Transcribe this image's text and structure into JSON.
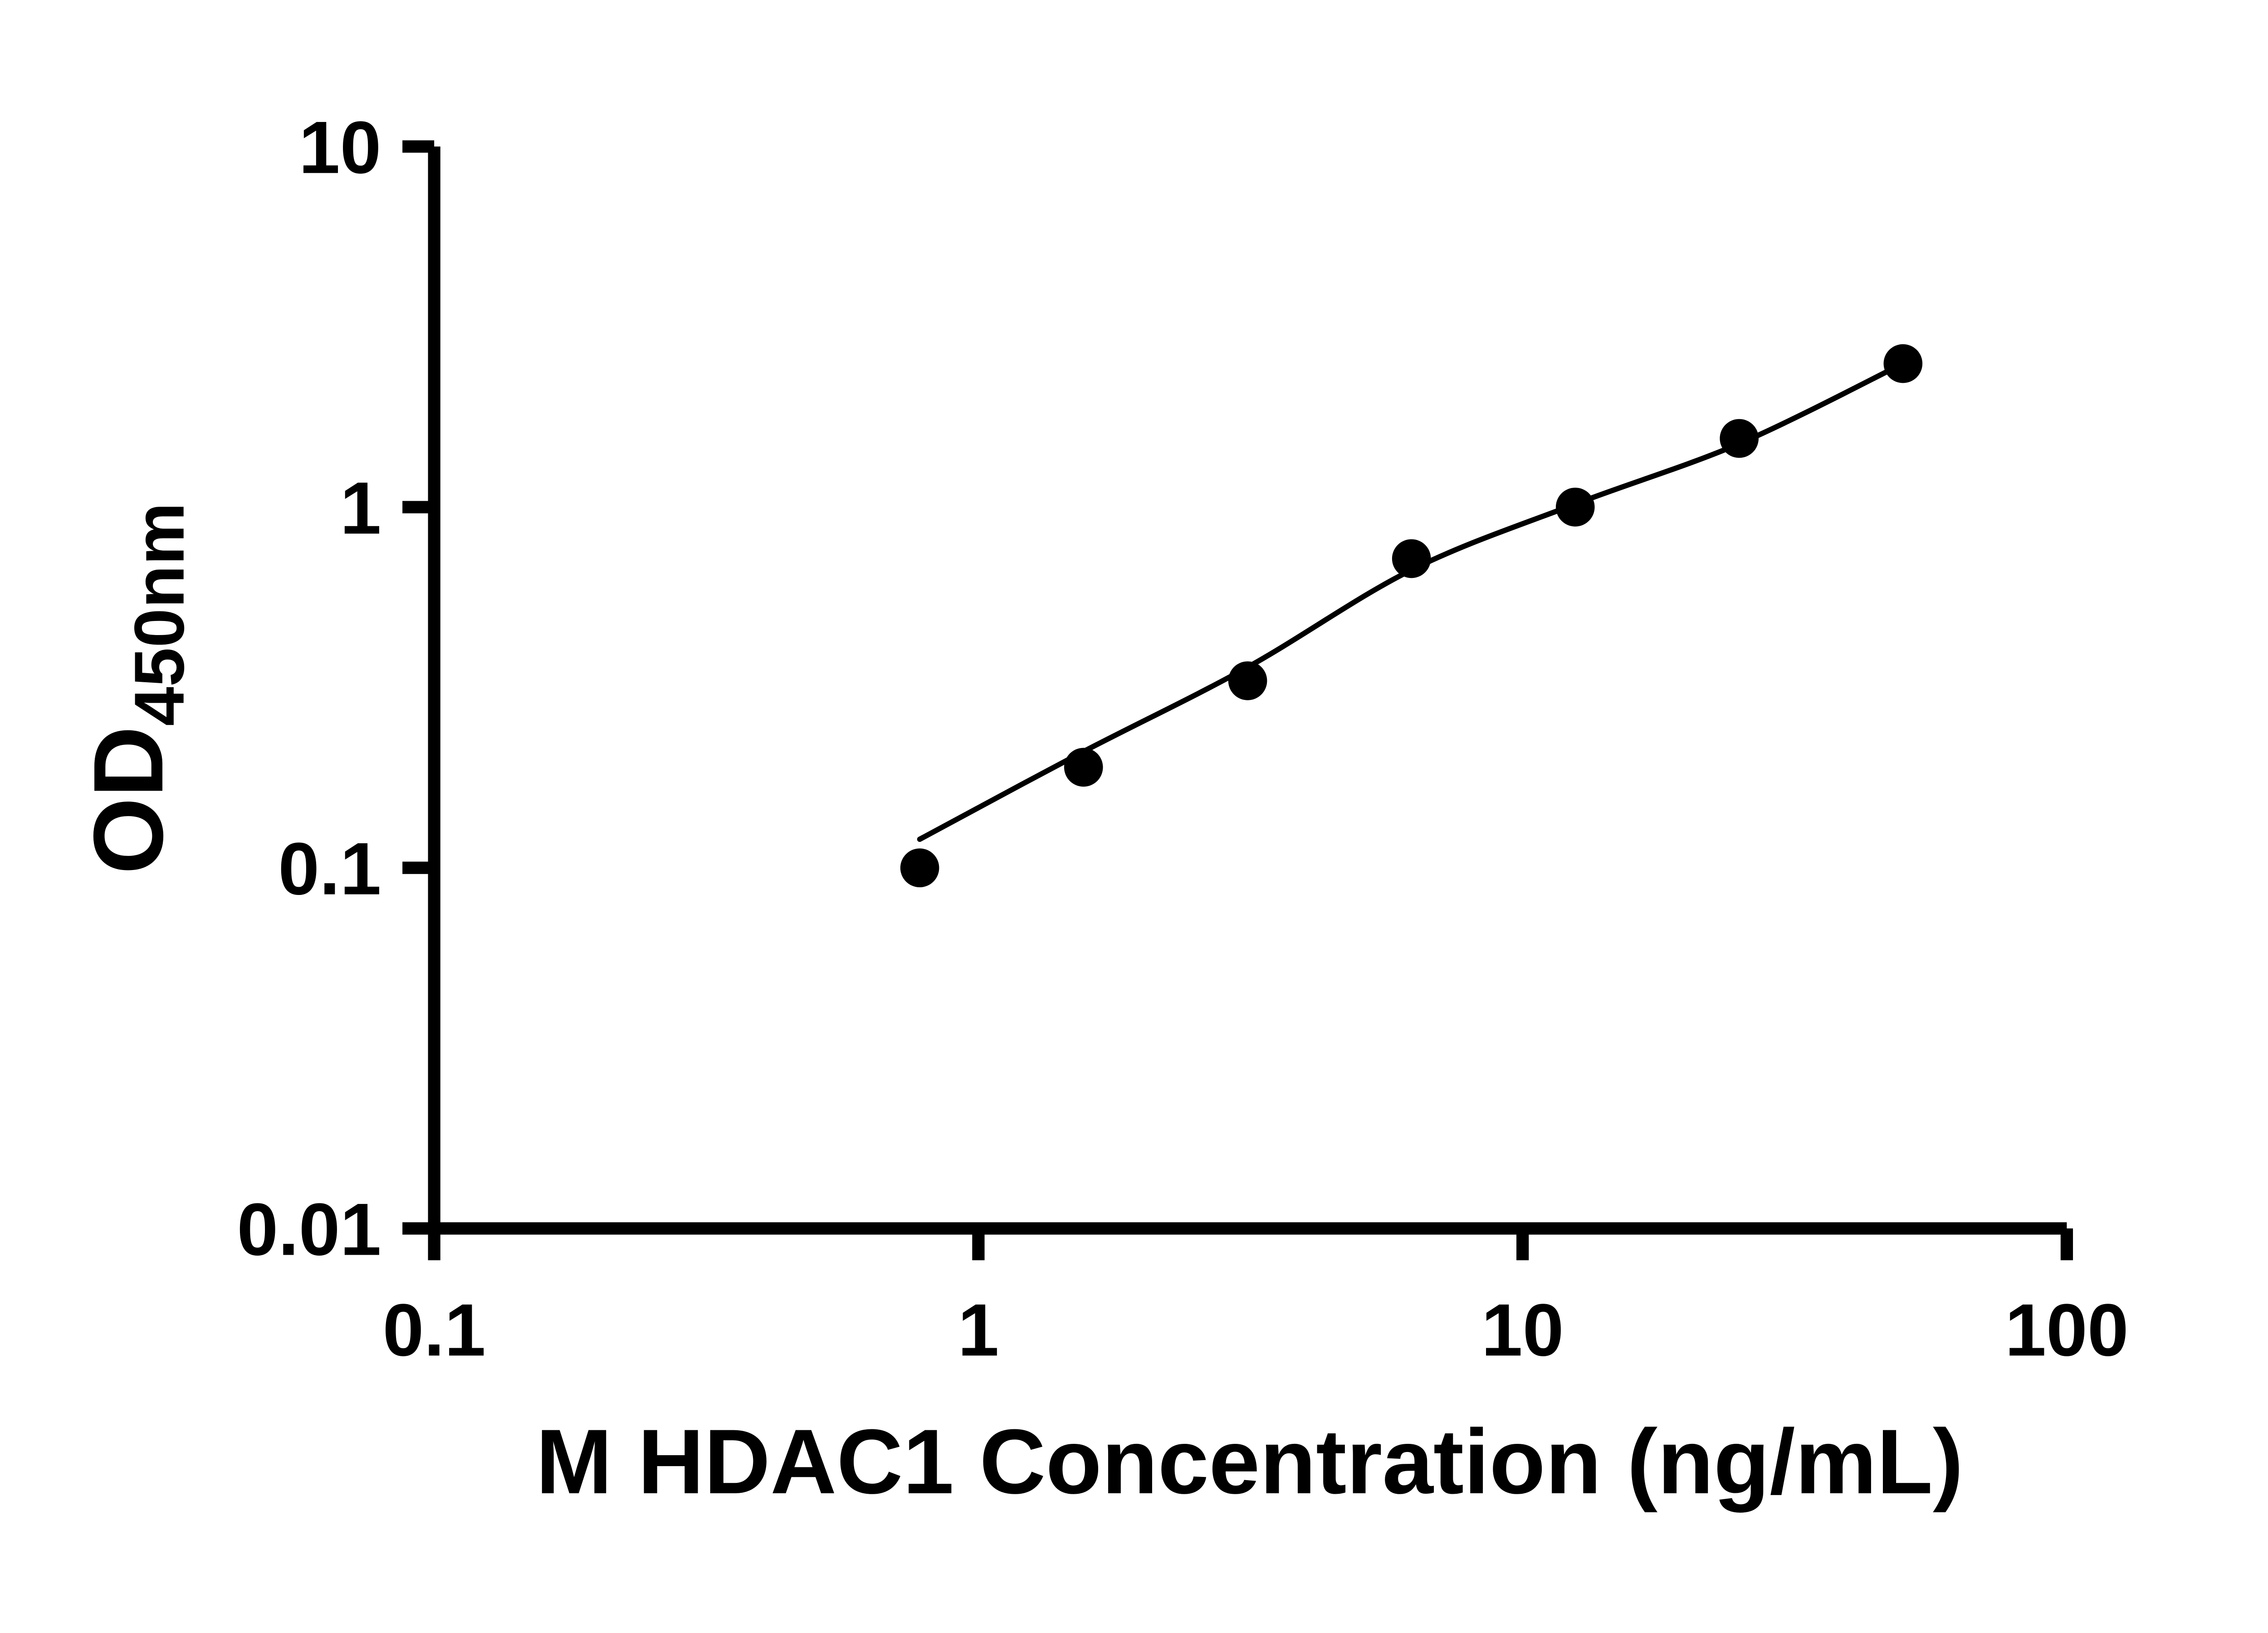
{
  "figure": {
    "background": "#ffffff"
  },
  "colors": {
    "axis": "#000000",
    "marker": "#000000",
    "curve": "#000000"
  },
  "chart_data": {
    "type": "scatter",
    "title": "",
    "xlabel": "M HDAC1 Concentration (ng/mL)",
    "ylabel": "OD450nm",
    "ylabel_base": "OD",
    "ylabel_subscript": "450nm",
    "x_scale": "log",
    "y_scale": "log",
    "xlim": [
      0.1,
      100
    ],
    "ylim": [
      0.01,
      10
    ],
    "x_ticks": [
      0.1,
      1,
      10,
      100
    ],
    "x_tick_labels": [
      "0.1",
      "1",
      "10",
      "100"
    ],
    "y_ticks": [
      0.01,
      0.1,
      1,
      10
    ],
    "y_tick_labels": [
      "0.01",
      "0.1",
      "1",
      "10"
    ],
    "grid": false,
    "legend": false,
    "series": [
      {
        "name": "standard-points",
        "type": "scatter",
        "marker": "circle",
        "color": "#000000",
        "x": [
          0.78,
          1.56,
          3.125,
          6.25,
          12.5,
          25,
          50
        ],
        "y": [
          0.1,
          0.19,
          0.33,
          0.72,
          1.0,
          1.55,
          2.5
        ]
      },
      {
        "name": "fit-curve",
        "type": "line",
        "color": "#000000",
        "x": [
          0.78,
          1.56,
          3.125,
          6.25,
          12.5,
          25,
          50
        ],
        "y": [
          0.12,
          0.21,
          0.36,
          0.67,
          1.02,
          1.5,
          2.5
        ]
      }
    ]
  }
}
